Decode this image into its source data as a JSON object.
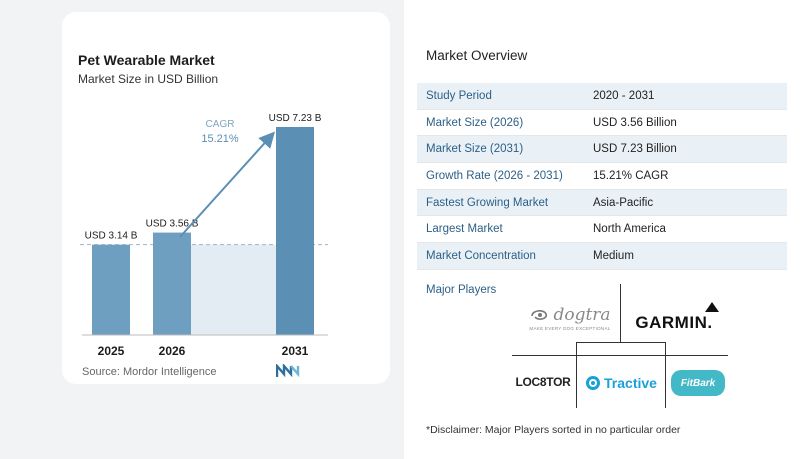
{
  "chart_data": {
    "type": "bar",
    "title": "Pet Wearable Market",
    "subtitle": "Market Size in USD Billion",
    "categories": [
      "2025",
      "2026",
      "2031"
    ],
    "values": [
      3.14,
      3.56,
      7.23
    ],
    "value_labels": [
      "USD 3.14 B",
      "USD 3.56 B",
      "USD 7.23 B"
    ],
    "ylim": [
      0,
      7.23
    ],
    "grid": false,
    "annotation": {
      "label": "CAGR",
      "value": "15.21%"
    },
    "bar_color": "#6f9fc0",
    "bar_color_highlight": "#5b8fb4"
  },
  "source": "Source:  Mordor Intelligence",
  "overview": {
    "title": "Market Overview",
    "rows": [
      {
        "label": "Study Period",
        "value": "2020 - 2031"
      },
      {
        "label": "Market Size (2026)",
        "value": "USD 3.56 Billion"
      },
      {
        "label": "Market Size (2031)",
        "value": "USD 7.23 Billion"
      },
      {
        "label": "Growth Rate (2026 - 2031)",
        "value": "15.21% CAGR"
      },
      {
        "label": "Fastest Growing Market",
        "value": "Asia-Pacific"
      },
      {
        "label": "Largest Market",
        "value": "North America"
      },
      {
        "label": "Market Concentration",
        "value": "Medium"
      }
    ]
  },
  "players": {
    "title": "Major Players",
    "logos": {
      "dogtra": "dogtra",
      "dogtra_tagline": "MAKE EVERY DOG EXCEPTIONAL",
      "garmin": "GARMIN.",
      "locator": "LOC8TOR",
      "tractive": "Tractive",
      "fitbark": "FitBark"
    }
  },
  "disclaimer": "*Disclaimer: Major Players sorted in no particular order",
  "colors": {
    "accent": "#2c5f86",
    "row_band": "#e9f1f7",
    "arrow": "#5b8fb4"
  }
}
